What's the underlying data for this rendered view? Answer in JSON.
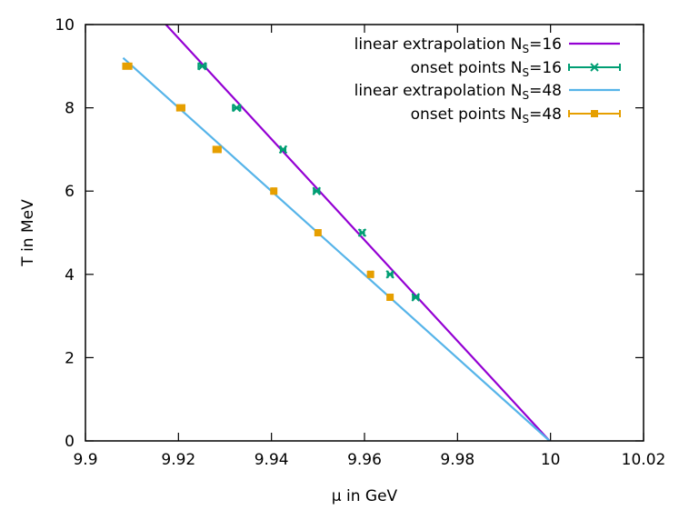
{
  "chart_data": {
    "type": "line",
    "xlabel": "μ in GeV",
    "ylabel": "T in MeV",
    "xlim": [
      9.9,
      10.02
    ],
    "ylim": [
      0,
      10
    ],
    "xticks": [
      "9.9",
      "9.92",
      "9.94",
      "9.96",
      "9.98",
      "10",
      "10.02"
    ],
    "yticks": [
      "0",
      "2",
      "4",
      "6",
      "8",
      "10"
    ],
    "grid": false,
    "legend_position": "top-right",
    "colors": {
      "line_ns16": "#9400d3",
      "points_ns16": "#009e73",
      "line_ns48": "#56b4e9",
      "points_ns48": "#e69f00"
    },
    "series": [
      {
        "name": "linear extrapolation N_S=16",
        "legend_main": "linear extrapolation N",
        "legend_sub": "S",
        "legend_tail": "=16",
        "kind": "line",
        "x": [
          9.9173,
          9.9998
        ],
        "y": [
          10.0,
          0.0
        ]
      },
      {
        "name": "onset points N_S=16",
        "legend_main": "onset points N",
        "legend_sub": "S",
        "legend_tail": "=16",
        "kind": "points",
        "marker": "x",
        "x": [
          9.9251,
          9.9325,
          9.9425,
          9.9497,
          9.9595,
          9.9655,
          9.971
        ],
        "xerr": [
          0.0008,
          0.0008,
          0.0005,
          0.0006,
          0.0004,
          0.0005,
          0.0006
        ],
        "y": [
          9.0,
          8.0,
          7.0,
          6.0,
          5.0,
          4.0,
          3.45
        ]
      },
      {
        "name": "linear extrapolation N_S=48",
        "legend_main": "linear extrapolation N",
        "legend_sub": "S",
        "legend_tail": "=48",
        "kind": "line",
        "x": [
          9.9081,
          9.9998
        ],
        "y": [
          9.2,
          0.0
        ]
      },
      {
        "name": "onset points N_S=48",
        "legend_main": "onset points N",
        "legend_sub": "S",
        "legend_tail": "=48",
        "kind": "points",
        "marker": "square",
        "x": [
          9.909,
          9.9205,
          9.9283,
          9.9405,
          9.95,
          9.9613,
          9.9655
        ],
        "xerr": [
          0.0009,
          0.0008,
          0.0008,
          0.0003,
          0.0002,
          0.0004,
          0.0003
        ],
        "y": [
          9.0,
          8.0,
          7.0,
          6.0,
          5.0,
          4.0,
          3.45
        ]
      }
    ]
  }
}
